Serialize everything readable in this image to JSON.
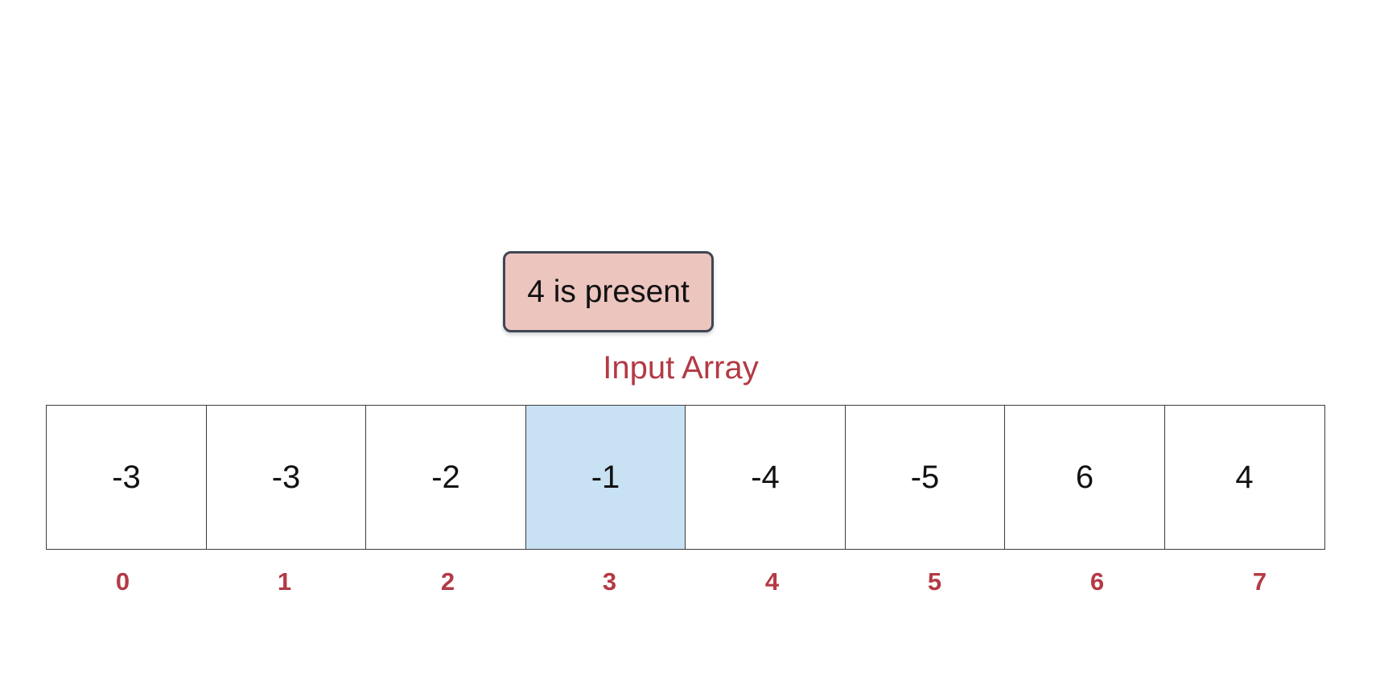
{
  "callout": {
    "text": "4 is present"
  },
  "array": {
    "title": "Input Array",
    "highlighted_index": 3,
    "cells": [
      "-3",
      "-3",
      "-2",
      "-1",
      "-4",
      "-5",
      "6",
      "4"
    ],
    "indices": [
      "0",
      "1",
      "2",
      "3",
      "4",
      "5",
      "6",
      "7"
    ]
  },
  "colors": {
    "callout_fill": "#ecc5bf",
    "callout_border": "#3f4654",
    "accent_red": "#b33a45",
    "highlight_fill": "#c8e1f3"
  }
}
